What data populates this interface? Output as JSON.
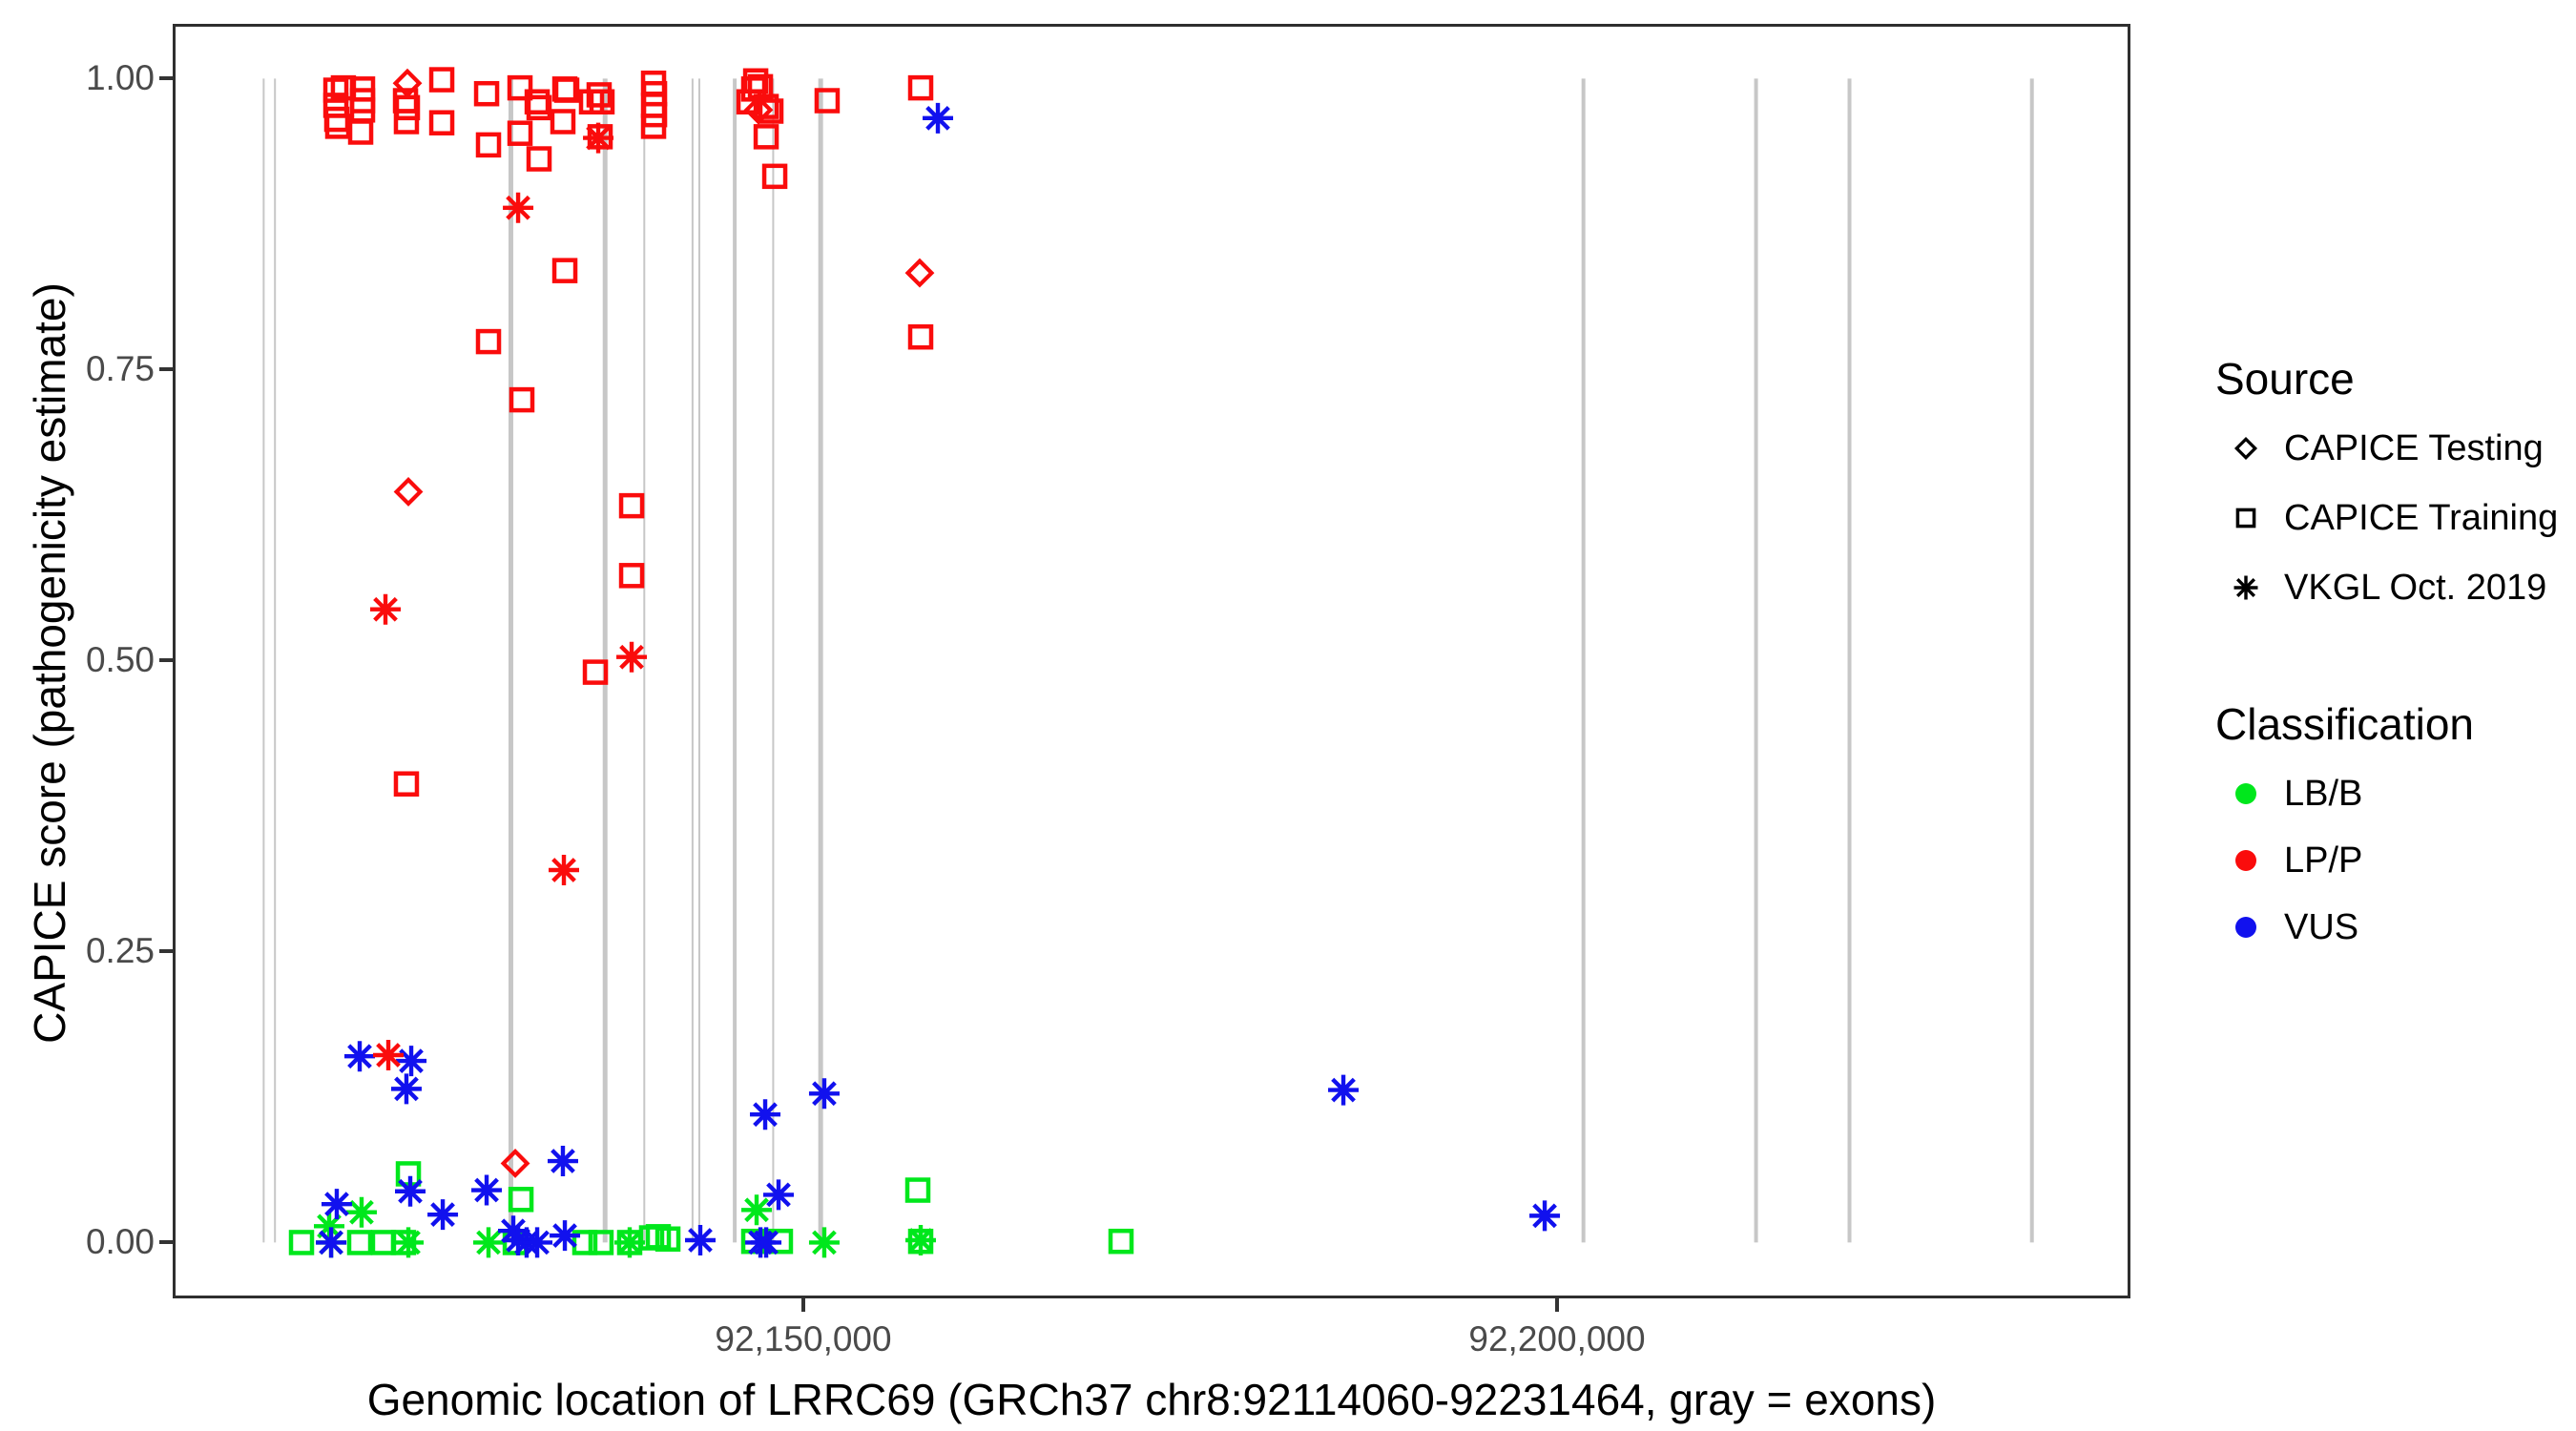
{
  "axes": {
    "x": {
      "label": "Genomic location of LRRC69 (GRCh37 chr8:92114060-92231464, gray = exons)",
      "ticks": [
        {
          "pos": 92150000,
          "label": "92,150,000"
        },
        {
          "pos": 92200000,
          "label": "92,200,000"
        }
      ]
    },
    "y": {
      "label": "CAPICE score (pathogenicity estimate)",
      "ticks": [
        {
          "val": 1.0,
          "label": "1.00"
        },
        {
          "val": 0.75,
          "label": "0.75"
        },
        {
          "val": 0.5,
          "label": "0.50"
        },
        {
          "val": 0.25,
          "label": "0.25"
        },
        {
          "val": 0.0,
          "label": "0.00"
        }
      ]
    }
  },
  "legend": {
    "source": {
      "title": "Source",
      "items": [
        {
          "label": "CAPICE Testing",
          "symbol": "diamond"
        },
        {
          "label": "CAPICE Training",
          "symbol": "square"
        },
        {
          "label": "VKGL Oct. 2019",
          "symbol": "asterisk"
        }
      ]
    },
    "classification": {
      "title": "Classification",
      "items": [
        {
          "label": "LB/B",
          "color": "#00e71c"
        },
        {
          "label": "LP/P",
          "color": "#fa0c0c"
        },
        {
          "label": "VUS",
          "color": "#1111ee"
        }
      ]
    }
  },
  "colors": {
    "exon": "#c7c7c7",
    "axis_text": "#4a4a4a",
    "panel_border": "#2f2f2f",
    "lbb": "#00e71c",
    "lpp": "#fa0c0c",
    "vus": "#1111ee"
  },
  "chart_data": {
    "type": "scatter",
    "title": "",
    "xlabel": "Genomic location of LRRC69 (GRCh37 chr8:92114060-92231464, gray = exons)",
    "ylabel": "CAPICE score (pathogenicity estimate)",
    "xlim": [
      92108165,
      92238037
    ],
    "ylim": [
      -0.048,
      1.047
    ],
    "grid": false,
    "legend_position": "right",
    "exons_note": "gray vertical lines mark exon positions, drawn from score 0 to 1",
    "exons": [
      {
        "pos": 92114200,
        "w": 2
      },
      {
        "pos": 92114950,
        "w": 2
      },
      {
        "pos": 92130600,
        "w": 5
      },
      {
        "pos": 92136850,
        "w": 5
      },
      {
        "pos": 92139450,
        "w": 2
      },
      {
        "pos": 92142650,
        "w": 2
      },
      {
        "pos": 92143100,
        "w": 2
      },
      {
        "pos": 92145450,
        "w": 4
      },
      {
        "pos": 92148000,
        "w": 2
      },
      {
        "pos": 92151150,
        "w": 5
      },
      {
        "pos": 92201750,
        "w": 4
      },
      {
        "pos": 92213200,
        "w": 4
      },
      {
        "pos": 92219400,
        "w": 4
      },
      {
        "pos": 92231500,
        "w": 4
      }
    ],
    "series": [
      {
        "source": "CAPICE Training",
        "classification": "LB/B",
        "symbol": "square",
        "color": "#00e71c",
        "points": [
          [
            92123800,
            0.059
          ],
          [
            92131270,
            0.037
          ],
          [
            92157595,
            0.045
          ],
          [
            92116710,
            0.0
          ],
          [
            92120570,
            0.0
          ],
          [
            92122150,
            0.0
          ],
          [
            92123480,
            0.0
          ],
          [
            92130890,
            0.0
          ],
          [
            92135505,
            0.0
          ],
          [
            92136580,
            0.0
          ],
          [
            92138480,
            0.0
          ],
          [
            92139935,
            0.004
          ],
          [
            92140380,
            0.005
          ],
          [
            92141015,
            0.003
          ],
          [
            92146710,
            0.001
          ],
          [
            92148480,
            0.001
          ],
          [
            92157785,
            0.001
          ],
          [
            92171075,
            0.001
          ]
        ]
      },
      {
        "source": "VKGL Oct. 2019",
        "classification": "LB/B",
        "symbol": "asterisk",
        "color": "#00e71c",
        "points": [
          [
            92118545,
            0.014
          ],
          [
            92120695,
            0.026
          ],
          [
            92118675,
            0.0
          ],
          [
            92123800,
            0.0
          ],
          [
            92129115,
            0.0
          ],
          [
            92138480,
            0.0
          ],
          [
            92146900,
            0.028
          ],
          [
            92151390,
            0.0
          ],
          [
            92157785,
            0.002
          ]
        ]
      },
      {
        "source": "VKGL Oct. 2019",
        "classification": "VUS",
        "symbol": "asterisk",
        "color": "#1111ee",
        "points": [
          [
            92158925,
            0.966
          ],
          [
            92120570,
            0.16
          ],
          [
            92123990,
            0.156
          ],
          [
            92123670,
            0.132
          ],
          [
            92119050,
            0.033
          ],
          [
            92123925,
            0.044
          ],
          [
            92126080,
            0.024
          ],
          [
            92128990,
            0.045
          ],
          [
            92130760,
            0.01
          ],
          [
            92131080,
            0.002
          ],
          [
            92131645,
            0.0
          ],
          [
            92132345,
            0.0
          ],
          [
            92134050,
            0.07
          ],
          [
            92134180,
            0.006
          ],
          [
            92118675,
            0.0
          ],
          [
            92143165,
            0.002
          ],
          [
            92147155,
            0.0
          ],
          [
            92147535,
            0.0
          ],
          [
            92147470,
            0.11
          ],
          [
            92148355,
            0.041
          ],
          [
            92151390,
            0.128
          ],
          [
            92185825,
            0.131
          ],
          [
            92199180,
            0.023
          ]
        ]
      },
      {
        "source": "CAPICE Training",
        "classification": "LP/P",
        "symbol": "square",
        "color": "#fa0c0c",
        "points": [
          [
            92118990,
            0.99
          ],
          [
            92119490,
            0.992
          ],
          [
            92118990,
            0.977
          ],
          [
            92119050,
            0.965
          ],
          [
            92119115,
            0.959
          ],
          [
            92120760,
            0.991
          ],
          [
            92120760,
            0.981
          ],
          [
            92120760,
            0.973
          ],
          [
            92120635,
            0.954
          ],
          [
            92123610,
            0.981
          ],
          [
            92123735,
            0.975
          ],
          [
            92123670,
            0.963
          ],
          [
            92126015,
            0.999
          ],
          [
            92126015,
            0.962
          ],
          [
            92128990,
            0.987
          ],
          [
            92129115,
            0.943
          ],
          [
            92131205,
            0.992
          ],
          [
            92131205,
            0.953
          ],
          [
            92132345,
            0.98
          ],
          [
            92132470,
            0.975
          ],
          [
            92132470,
            0.931
          ],
          [
            92134180,
            0.991
          ],
          [
            92134305,
            0.99
          ],
          [
            92134050,
            0.963
          ],
          [
            92135950,
            0.98
          ],
          [
            92136455,
            0.986
          ],
          [
            92136645,
            0.98
          ],
          [
            92136520,
            0.95
          ],
          [
            92140065,
            0.996
          ],
          [
            92140130,
            0.987
          ],
          [
            92140065,
            0.977
          ],
          [
            92140130,
            0.969
          ],
          [
            92140065,
            0.959
          ],
          [
            92146840,
            0.998
          ],
          [
            92147155,
            0.993
          ],
          [
            92146710,
            0.991
          ],
          [
            92146395,
            0.98
          ],
          [
            92147535,
            0.976
          ],
          [
            92147850,
            0.972
          ],
          [
            92147535,
            0.95
          ],
          [
            92148105,
            0.916
          ],
          [
            92151580,
            0.981
          ],
          [
            92157785,
            0.992
          ],
          [
            92157785,
            0.778
          ],
          [
            92134180,
            0.835
          ],
          [
            92129115,
            0.774
          ],
          [
            92131330,
            0.724
          ],
          [
            92138610,
            0.633
          ],
          [
            92138610,
            0.573
          ],
          [
            92136205,
            0.49
          ],
          [
            92123670,
            0.394
          ]
        ]
      },
      {
        "source": "CAPICE Testing",
        "classification": "LP/P",
        "symbol": "diamond",
        "color": "#fa0c0c",
        "points": [
          [
            92123735,
            0.996
          ],
          [
            92147025,
            0.973
          ],
          [
            92157720,
            0.833
          ],
          [
            92123800,
            0.645
          ],
          [
            92130890,
            0.068
          ]
        ]
      },
      {
        "source": "VKGL Oct. 2019",
        "classification": "LP/P",
        "symbol": "asterisk",
        "color": "#fa0c0c",
        "points": [
          [
            92136395,
            0.949
          ],
          [
            92131080,
            0.889
          ],
          [
            92122280,
            0.544
          ],
          [
            92138610,
            0.503
          ],
          [
            92134115,
            0.32
          ],
          [
            92122470,
            0.161
          ]
        ]
      }
    ]
  }
}
